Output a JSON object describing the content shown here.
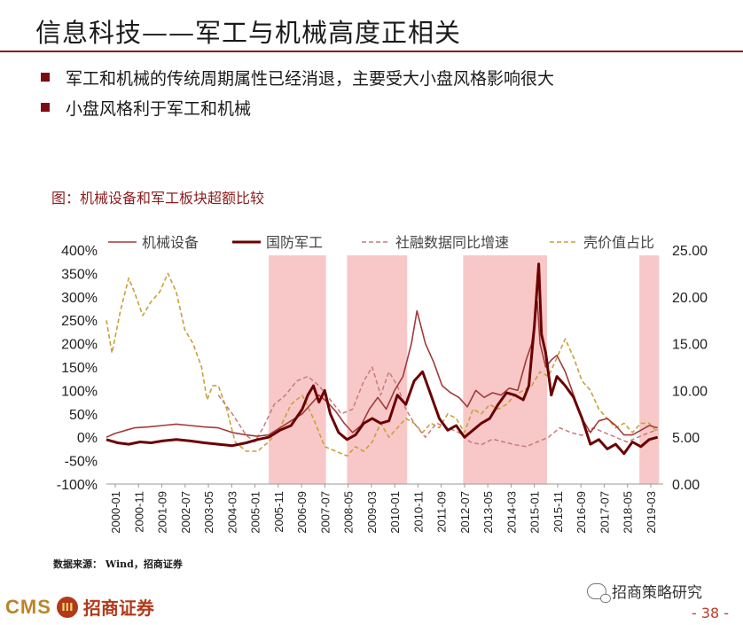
{
  "slide": {
    "title": "信息科技——军工与机械高度正相关",
    "bullets": [
      "军工和机械的传统周期属性已经消退，主要受大小盘风格影响很大",
      "小盘风格利于军工和机械"
    ],
    "figure_caption": "图：机械设备和军工板块超额比较",
    "source": "数据来源： Wind，招商证券",
    "footer": {
      "brand_en": "CMS",
      "brand_mark": "III",
      "brand_cn": "招商证券",
      "wechat": "招商策略研究",
      "page": "- 38 -"
    }
  },
  "colors": {
    "machinery": "#a23a3a",
    "defense": "#6b0000",
    "social_financing": "#c87a7a",
    "shell_value": "#c9a03a",
    "shade": "#f8c8c8",
    "accent": "#8c1c1c"
  },
  "chart_data": {
    "type": "line",
    "title": "",
    "legend_position": "top",
    "x_ticks": [
      "2000-01",
      "2000-11",
      "2001-09",
      "2002-07",
      "2003-05",
      "2004-03",
      "2005-01",
      "2005-11",
      "2006-09",
      "2007-07",
      "2008-05",
      "2009-03",
      "2010-01",
      "2010-11",
      "2011-09",
      "2012-07",
      "2013-05",
      "2014-03",
      "2015-01",
      "2015-11",
      "2016-09",
      "2017-07",
      "2018-05",
      "2019-03"
    ],
    "y_left": {
      "min": -100,
      "max": 400,
      "ticks": [
        "-100%",
        "-50%",
        "0%",
        "50%",
        "100%",
        "150%",
        "200%",
        "250%",
        "300%",
        "350%",
        "400%"
      ]
    },
    "y_right": {
      "min": 0,
      "max": 25,
      "ticks": [
        "0.00",
        "5.00",
        "10.00",
        "15.00",
        "20.00",
        "25.00"
      ]
    },
    "shaded_periods": [
      [
        2005.8,
        2007.85
      ],
      [
        2008.6,
        2010.75
      ],
      [
        2012.75,
        2015.75
      ],
      [
        2019.05,
        2019.75
      ]
    ],
    "series": [
      {
        "name": "机械设备",
        "axis": "left",
        "style": "solid-thin",
        "x": [
          2000.0,
          2000.3,
          2000.7,
          2001.0,
          2001.5,
          2002.0,
          2002.5,
          2003.0,
          2003.5,
          2004.0,
          2004.5,
          2005.0,
          2005.4,
          2005.8,
          2006.2,
          2006.6,
          2007.0,
          2007.3,
          2007.6,
          2007.9,
          2008.2,
          2008.5,
          2008.8,
          2009.1,
          2009.4,
          2009.7,
          2010.0,
          2010.3,
          2010.6,
          2010.9,
          2011.1,
          2011.4,
          2011.7,
          2012.0,
          2012.3,
          2012.6,
          2012.9,
          2013.2,
          2013.5,
          2013.8,
          2014.1,
          2014.4,
          2014.7,
          2015.0,
          2015.2,
          2015.4,
          2015.5,
          2015.7,
          2015.9,
          2016.1,
          2016.4,
          2016.7,
          2017.0,
          2017.3,
          2017.6,
          2017.9,
          2018.2,
          2018.5,
          2018.8,
          2019.1,
          2019.4,
          2019.7
        ],
        "y": [
          0,
          8,
          15,
          20,
          22,
          25,
          28,
          25,
          22,
          20,
          10,
          5,
          2,
          5,
          20,
          35,
          50,
          70,
          90,
          75,
          55,
          30,
          10,
          25,
          60,
          85,
          60,
          100,
          130,
          200,
          270,
          200,
          160,
          110,
          95,
          85,
          65,
          100,
          85,
          95,
          90,
          105,
          100,
          165,
          200,
          290,
          200,
          150,
          165,
          175,
          140,
          90,
          40,
          10,
          35,
          40,
          25,
          5,
          5,
          15,
          25,
          20
        ]
      },
      {
        "name": "国防军工",
        "axis": "left",
        "style": "solid-thick",
        "x": [
          2000.0,
          2000.4,
          2000.8,
          2001.2,
          2001.6,
          2002.0,
          2002.5,
          2003.0,
          2003.5,
          2004.0,
          2004.5,
          2005.0,
          2005.4,
          2005.8,
          2006.2,
          2006.6,
          2007.0,
          2007.2,
          2007.4,
          2007.6,
          2007.8,
          2008.0,
          2008.3,
          2008.6,
          2008.9,
          2009.2,
          2009.5,
          2009.8,
          2010.1,
          2010.4,
          2010.7,
          2011.0,
          2011.3,
          2011.6,
          2011.9,
          2012.2,
          2012.5,
          2012.8,
          2013.1,
          2013.4,
          2013.7,
          2014.0,
          2014.3,
          2014.6,
          2014.9,
          2015.1,
          2015.3,
          2015.45,
          2015.55,
          2015.7,
          2015.9,
          2016.1,
          2016.4,
          2016.7,
          2017.0,
          2017.3,
          2017.6,
          2017.9,
          2018.2,
          2018.5,
          2018.8,
          2019.1,
          2019.4,
          2019.7
        ],
        "y": [
          -5,
          -12,
          -15,
          -10,
          -12,
          -8,
          -5,
          -8,
          -12,
          -15,
          -18,
          -12,
          -5,
          0,
          15,
          25,
          60,
          90,
          110,
          75,
          100,
          50,
          10,
          -5,
          5,
          30,
          40,
          30,
          35,
          90,
          70,
          120,
          140,
          90,
          40,
          15,
          25,
          0,
          15,
          30,
          40,
          70,
          95,
          90,
          80,
          110,
          240,
          370,
          220,
          180,
          90,
          130,
          110,
          85,
          40,
          -15,
          -5,
          -25,
          -15,
          -35,
          -10,
          -20,
          -5,
          0
        ]
      },
      {
        "name": "社融数据同比增速",
        "axis": "right",
        "style": "dashed",
        "x": [
          2004.0,
          2004.5,
          2005.0,
          2005.3,
          2005.6,
          2006.0,
          2006.4,
          2006.8,
          2007.2,
          2007.6,
          2008.0,
          2008.4,
          2008.8,
          2009.2,
          2009.5,
          2009.8,
          2010.1,
          2010.4,
          2010.7,
          2011.0,
          2011.4,
          2011.8,
          2012.2,
          2012.6,
          2013.0,
          2013.4,
          2013.8,
          2014.2,
          2014.6,
          2015.0,
          2015.4,
          2015.8,
          2016.2,
          2016.6,
          2017.0,
          2017.4,
          2017.8,
          2018.2,
          2018.6,
          2019.0,
          2019.4,
          2019.7
        ],
        "y": [
          9.5,
          7.5,
          5.2,
          4.5,
          6,
          8.5,
          9.5,
          11,
          11.5,
          10.5,
          9,
          7.5,
          8,
          11,
          12.5,
          9.5,
          12,
          10.5,
          8,
          6.5,
          5,
          6.5,
          6,
          5.5,
          4.5,
          4.2,
          4.8,
          4.5,
          4.2,
          4,
          4.5,
          5,
          6,
          5.5,
          5.2,
          6,
          5.5,
          5,
          4.5,
          5,
          5.5,
          5.8
        ]
      },
      {
        "name": "壳价值占比",
        "axis": "right",
        "style": "dashed",
        "x": [
          2000.0,
          2000.2,
          2000.5,
          2000.8,
          2001.0,
          2001.3,
          2001.6,
          2001.9,
          2002.2,
          2002.5,
          2002.8,
          2003.1,
          2003.4,
          2003.6,
          2003.8,
          2004.0,
          2004.3,
          2004.6,
          2005.0,
          2005.4,
          2005.8,
          2006.2,
          2006.6,
          2007.0,
          2007.4,
          2007.8,
          2008.2,
          2008.6,
          2008.9,
          2009.2,
          2009.5,
          2009.8,
          2010.1,
          2010.4,
          2010.7,
          2011.0,
          2011.3,
          2011.6,
          2011.9,
          2012.2,
          2012.5,
          2012.8,
          2013.1,
          2013.4,
          2013.7,
          2014.0,
          2014.3,
          2014.6,
          2014.9,
          2015.2,
          2015.5,
          2015.8,
          2016.1,
          2016.4,
          2016.7,
          2017.0,
          2017.3,
          2017.6,
          2017.9,
          2018.2,
          2018.5,
          2018.8,
          2019.1,
          2019.4,
          2019.7
        ],
        "y": [
          17.5,
          14,
          18.5,
          22,
          20.5,
          18,
          19.5,
          20.5,
          22.5,
          20.5,
          16.5,
          15,
          12.5,
          9,
          10.5,
          10.5,
          8,
          4.5,
          3.5,
          3.5,
          4.5,
          6,
          8.5,
          9.5,
          7,
          4,
          3.5,
          3,
          4,
          3.5,
          4.5,
          6.5,
          5,
          6,
          7,
          6.5,
          5.5,
          6.5,
          6,
          7.5,
          7,
          5.5,
          8,
          7.5,
          8.5,
          8,
          8.5,
          9.5,
          10,
          10.5,
          12,
          11.5,
          13.5,
          15.5,
          13.5,
          11,
          10,
          8,
          7,
          6,
          6.5,
          5.5,
          6.5,
          6.5,
          5.5
        ]
      }
    ]
  }
}
